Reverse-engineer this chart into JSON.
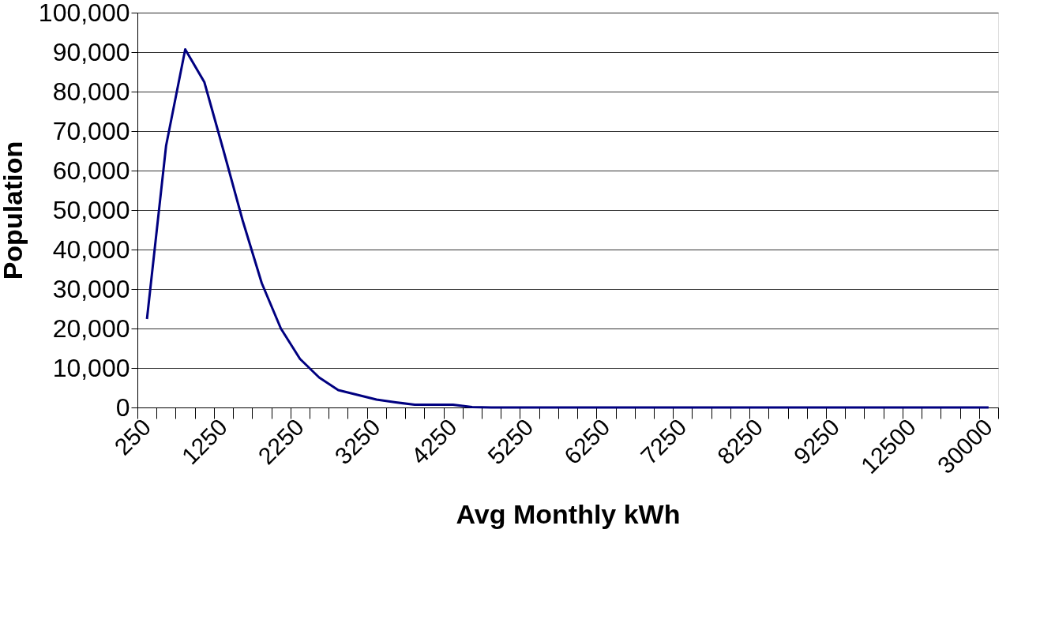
{
  "chart_data": {
    "type": "line",
    "xlabel": "Avg Monthly kWh",
    "ylabel": "Population",
    "categories": [
      "250",
      null,
      null,
      null,
      "1250",
      null,
      null,
      null,
      "2250",
      null,
      null,
      null,
      "3250",
      null,
      null,
      null,
      "4250",
      null,
      null,
      null,
      "5250",
      null,
      null,
      null,
      "6250",
      null,
      null,
      null,
      "7250",
      null,
      null,
      null,
      "8250",
      null,
      null,
      null,
      "9250",
      null,
      null,
      null,
      "12500",
      null,
      null,
      null,
      "30000"
    ],
    "series": [
      {
        "color": "#000080",
        "values": [
          22400,
          66300,
          90700,
          82400,
          65100,
          47400,
          31500,
          20000,
          12300,
          7600,
          4400,
          3200,
          2000,
          1300,
          700,
          700,
          700,
          100,
          0,
          0,
          0,
          0,
          0,
          0,
          0,
          0,
          0,
          0,
          0,
          0,
          0,
          0,
          0,
          0,
          0,
          0,
          0,
          0,
          0,
          0,
          0,
          0,
          0,
          0,
          0
        ]
      }
    ],
    "ylim": [
      0,
      100000
    ],
    "yticks": [
      0,
      {
        "value": 10000,
        "label": "10,000"
      },
      {
        "value": 20000,
        "label": "20,000"
      },
      {
        "value": 30000,
        "label": "30,000"
      },
      {
        "value": 40000,
        "label": "40,000"
      },
      {
        "value": 50000,
        "label": "50,000"
      },
      {
        "value": 60000,
        "label": "60,000"
      },
      {
        "value": 70000,
        "label": "70,000"
      },
      {
        "value": 80000,
        "label": "80,000"
      },
      {
        "value": 90000,
        "label": "90,000"
      },
      {
        "value": 100000,
        "label": "100,000"
      }
    ],
    "grid": "y",
    "legend": false,
    "marker": "none",
    "line_style": "solid"
  }
}
